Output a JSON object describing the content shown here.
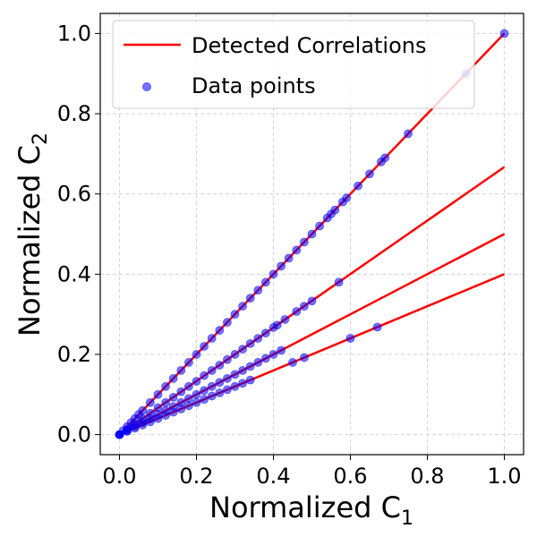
{
  "chart_data": {
    "type": "scatter",
    "xlabel": "Normalized C",
    "xlabel_sub": "1",
    "ylabel": "Normalized C",
    "ylabel_sub": "2",
    "xlim": [
      -0.05,
      1.05
    ],
    "ylim": [
      -0.05,
      1.05
    ],
    "x_ticks": [
      0.0,
      0.2,
      0.4,
      0.6,
      0.8,
      1.0
    ],
    "x_tick_labels": [
      "0.0",
      "0.2",
      "0.4",
      "0.6",
      "0.8",
      "1.0"
    ],
    "y_ticks": [
      0.0,
      0.2,
      0.4,
      0.6,
      0.8,
      1.0
    ],
    "y_tick_labels": [
      "0.0",
      "0.2",
      "0.4",
      "0.6",
      "0.8",
      "1.0"
    ],
    "grid": true,
    "legend_position": "top-left",
    "legend": [
      {
        "label": "Detected Correlations",
        "kind": "line",
        "color": "#ff0000"
      },
      {
        "label": "Data points",
        "kind": "marker",
        "color": "#0000ff"
      }
    ],
    "lines": [
      {
        "x": [
          0.0,
          1.0
        ],
        "y": [
          0.0,
          1.0
        ],
        "color": "#ff0000"
      },
      {
        "x": [
          0.0,
          1.0
        ],
        "y": [
          0.0,
          0.667
        ],
        "color": "#ff0000"
      },
      {
        "x": [
          0.0,
          1.0
        ],
        "y": [
          0.0,
          0.5
        ],
        "color": "#ff0000"
      },
      {
        "x": [
          0.0,
          1.0
        ],
        "y": [
          0.0,
          0.4
        ],
        "color": "#ff0000"
      }
    ],
    "points": {
      "color": "#0000ff",
      "alpha": 0.55,
      "x": [
        0,
        0.01,
        0.02,
        0.03,
        0.04,
        0.05,
        0.06,
        0.08,
        0.1,
        0.12,
        0.14,
        0.16,
        0.18,
        0.2,
        0.22,
        0.24,
        0.26,
        0.28,
        0.3,
        0.32,
        0.34,
        0.36,
        0.38,
        0.4,
        0.42,
        0.44,
        0.46,
        0.48,
        0.5,
        0.52,
        0.54,
        0.55,
        0.56,
        0.58,
        0.59,
        0.62,
        0.65,
        0.68,
        0.69,
        0.75,
        0.9,
        1.0,
        0,
        0.02,
        0.04,
        0.06,
        0.08,
        0.1,
        0.12,
        0.14,
        0.16,
        0.18,
        0.2,
        0.22,
        0.24,
        0.26,
        0.28,
        0.3,
        0.32,
        0.34,
        0.36,
        0.38,
        0.4,
        0.41,
        0.43,
        0.46,
        0.48,
        0.5,
        0.57,
        0,
        0.02,
        0.04,
        0.06,
        0.08,
        0.1,
        0.12,
        0.14,
        0.16,
        0.18,
        0.2,
        0.22,
        0.24,
        0.26,
        0.28,
        0.3,
        0.32,
        0.34,
        0.36,
        0.38,
        0.4,
        0.42,
        0,
        0.02,
        0.04,
        0.06,
        0.08,
        0.1,
        0.12,
        0.14,
        0.16,
        0.18,
        0.2,
        0.22,
        0.24,
        0.26,
        0.28,
        0.3,
        0.32,
        0.34,
        0.45,
        0.48,
        0.6,
        0.67
      ],
      "y": [
        0,
        0.01,
        0.02,
        0.03,
        0.04,
        0.05,
        0.06,
        0.08,
        0.1,
        0.12,
        0.14,
        0.16,
        0.18,
        0.2,
        0.22,
        0.24,
        0.26,
        0.28,
        0.3,
        0.32,
        0.34,
        0.36,
        0.38,
        0.4,
        0.42,
        0.44,
        0.46,
        0.48,
        0.5,
        0.52,
        0.54,
        0.55,
        0.56,
        0.58,
        0.59,
        0.62,
        0.65,
        0.68,
        0.69,
        0.75,
        0.9,
        1.0,
        0,
        0.013,
        0.027,
        0.04,
        0.053,
        0.067,
        0.08,
        0.093,
        0.107,
        0.12,
        0.133,
        0.147,
        0.16,
        0.173,
        0.187,
        0.2,
        0.213,
        0.227,
        0.24,
        0.253,
        0.267,
        0.273,
        0.287,
        0.307,
        0.32,
        0.333,
        0.38,
        0,
        0.01,
        0.02,
        0.03,
        0.04,
        0.05,
        0.06,
        0.07,
        0.08,
        0.09,
        0.1,
        0.11,
        0.12,
        0.13,
        0.14,
        0.15,
        0.16,
        0.17,
        0.18,
        0.19,
        0.2,
        0.21,
        0,
        0.008,
        0.016,
        0.024,
        0.032,
        0.04,
        0.048,
        0.056,
        0.064,
        0.072,
        0.08,
        0.088,
        0.096,
        0.104,
        0.112,
        0.12,
        0.128,
        0.136,
        0.18,
        0.192,
        0.24,
        0.268
      ]
    }
  }
}
